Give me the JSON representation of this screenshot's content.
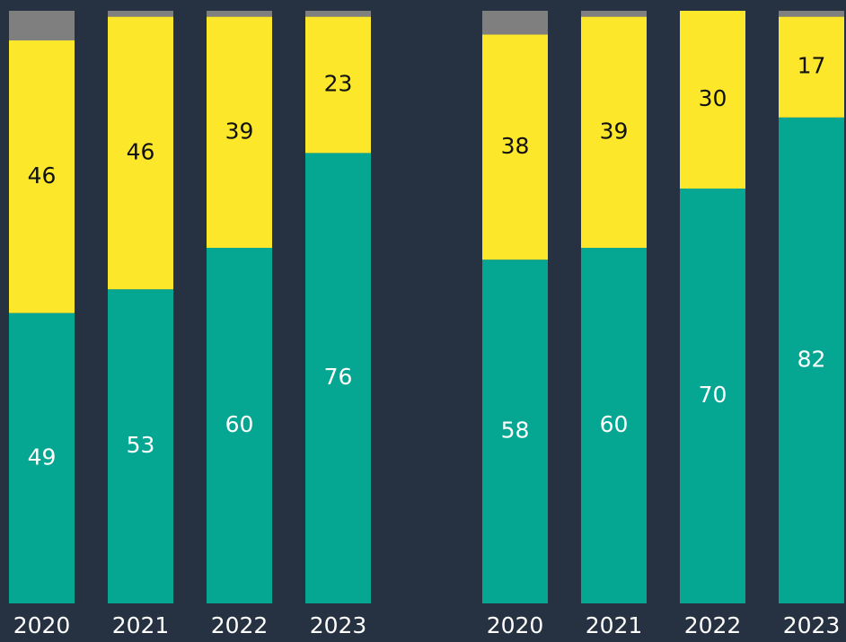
{
  "chart_data": [
    {
      "type": "bar",
      "stacked": true,
      "categories": [
        "2020",
        "2021",
        "2022",
        "2023"
      ],
      "ylim": [
        0,
        100
      ],
      "series": [
        {
          "color": "#05a692",
          "label_color": "#ffffff",
          "labels": true,
          "values": [
            49,
            53,
            60,
            76
          ]
        },
        {
          "color": "#fde72b",
          "label_color": "#111111",
          "labels": true,
          "values": [
            46,
            46,
            39,
            23
          ]
        },
        {
          "color": "#7f7f7f",
          "labels": false,
          "values": [
            5,
            1,
            1,
            1
          ]
        }
      ]
    },
    {
      "type": "bar",
      "stacked": true,
      "categories": [
        "2020",
        "2021",
        "2022",
        "2023"
      ],
      "ylim": [
        0,
        100
      ],
      "series": [
        {
          "color": "#05a692",
          "label_color": "#ffffff",
          "labels": true,
          "values": [
            58,
            60,
            70,
            82
          ]
        },
        {
          "color": "#fde72b",
          "label_color": "#111111",
          "labels": true,
          "values": [
            38,
            39,
            30,
            17
          ]
        },
        {
          "color": "#7f7f7f",
          "labels": false,
          "values": [
            4,
            1,
            0,
            1
          ]
        }
      ]
    }
  ]
}
